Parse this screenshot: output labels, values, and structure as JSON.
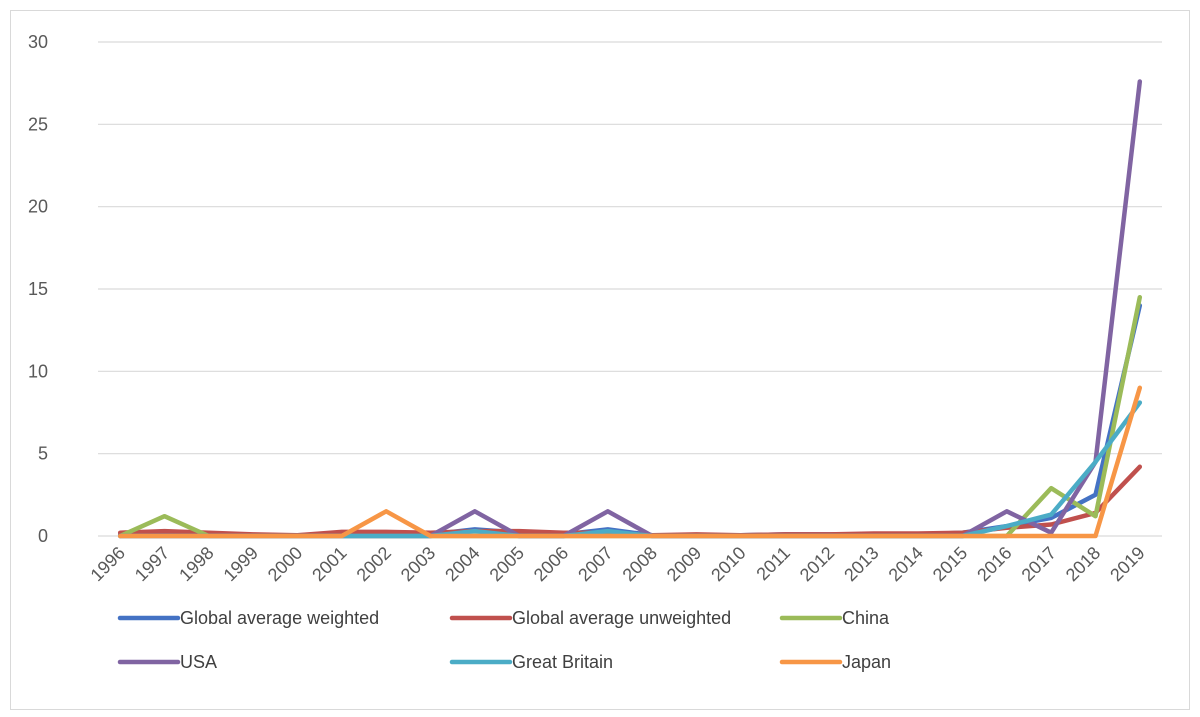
{
  "chart_data": {
    "type": "line",
    "title": "",
    "xlabel": "",
    "ylabel": "",
    "ylim": [
      0,
      30
    ],
    "yticks": [
      0,
      5,
      10,
      15,
      20,
      25,
      30
    ],
    "grid": true,
    "legend_position": "bottom",
    "x": [
      "1996",
      "1997",
      "1998",
      "1999",
      "2000",
      "2001",
      "2002",
      "2003",
      "2004",
      "2005",
      "2006",
      "2007",
      "2008",
      "2009",
      "2010",
      "2011",
      "2012",
      "2013",
      "2014",
      "2015",
      "2016",
      "2017",
      "2018",
      "2019"
    ],
    "series": [
      {
        "name": "Global average weighted",
        "color": "#4472c4",
        "values": [
          0.1,
          0.1,
          0.1,
          0.05,
          0.05,
          0.1,
          0.15,
          0.1,
          0.4,
          0.2,
          0.1,
          0.4,
          0.05,
          0.05,
          0.05,
          0.1,
          0.1,
          0.1,
          0.1,
          0.2,
          0.6,
          1.1,
          2.5,
          14.0
        ]
      },
      {
        "name": "Global average unweighted",
        "color": "#c0504d",
        "values": [
          0.2,
          0.3,
          0.2,
          0.1,
          0.05,
          0.25,
          0.25,
          0.2,
          0.3,
          0.3,
          0.2,
          0.2,
          0.05,
          0.1,
          0.05,
          0.1,
          0.1,
          0.15,
          0.15,
          0.2,
          0.5,
          0.7,
          1.4,
          4.2
        ]
      },
      {
        "name": "China",
        "color": "#9bbb59",
        "values": [
          0,
          1.2,
          0,
          0,
          0,
          0,
          0,
          0,
          0,
          0,
          0,
          0,
          0,
          0,
          0,
          0,
          0,
          0,
          0,
          0,
          0,
          2.9,
          1.2,
          14.5
        ]
      },
      {
        "name": "USA",
        "color": "#8064a2",
        "values": [
          0,
          0,
          0,
          0,
          0,
          0,
          0,
          0,
          1.5,
          0,
          0,
          1.5,
          0,
          0,
          0,
          0,
          0,
          0,
          0,
          0,
          1.5,
          0.2,
          4.5,
          27.6
        ]
      },
      {
        "name": "Great Britain",
        "color": "#4bacc6",
        "values": [
          0,
          0,
          0,
          0,
          0,
          0,
          0,
          0,
          0.3,
          0,
          0,
          0.3,
          0,
          0,
          0,
          0,
          0,
          0,
          0,
          0,
          0.6,
          1.3,
          4.5,
          8.1
        ]
      },
      {
        "name": "Japan",
        "color": "#f79646",
        "values": [
          0,
          0,
          0,
          0,
          0,
          0,
          1.5,
          0,
          0,
          0,
          0,
          0,
          0,
          0,
          0,
          0,
          0,
          0,
          0,
          0,
          0,
          0,
          0,
          9.0
        ]
      }
    ]
  }
}
